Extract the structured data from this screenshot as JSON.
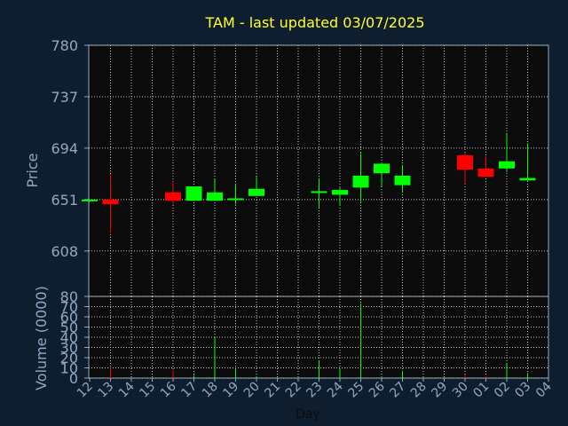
{
  "chart_data": {
    "type": "candlestick",
    "title": "TAM - last updated 03/07/2025",
    "xlabel": "Day",
    "price_panel": {
      "ylabel": "Price",
      "ylim": [
        570,
        780
      ],
      "yticks": [
        608,
        651,
        694,
        737,
        780
      ],
      "grid": true
    },
    "volume_panel": {
      "ylabel": "Volume (0000)",
      "ylim": [
        0,
        80
      ],
      "yticks": [
        0,
        10,
        20,
        30,
        40,
        50,
        60,
        70,
        80
      ],
      "grid": true
    },
    "x_tick_labels": [
      "12",
      "13",
      "14",
      "15",
      "16",
      "17",
      "18",
      "19",
      "20",
      "21",
      "22",
      "23",
      "24",
      "25",
      "26",
      "27",
      "28",
      "29",
      "30",
      "01",
      "02",
      "03",
      "04"
    ],
    "colors": {
      "background": "#0f1e2e",
      "plot_background": "#0b0b0b",
      "up": "#00ff00",
      "down": "#ff0000",
      "title": "#ffff33",
      "axis_text": "#8fa9c4",
      "grid": "#c8c8c8",
      "frame": "#8fa9c4"
    },
    "candles": [
      {
        "day": "12",
        "open": 650,
        "high": 651,
        "low": 649,
        "close": 651,
        "volume": 0.5
      },
      {
        "day": "13",
        "open": 651,
        "high": 672,
        "low": 623,
        "close": 647,
        "volume": 10
      },
      {
        "day": "16",
        "open": 657,
        "high": 667,
        "low": 647,
        "close": 650,
        "volume": 8
      },
      {
        "day": "17",
        "open": 650,
        "high": 662,
        "low": 650,
        "close": 662,
        "volume": 3
      },
      {
        "day": "18",
        "open": 650,
        "high": 668,
        "low": 650,
        "close": 657,
        "volume": 41
      },
      {
        "day": "19",
        "open": 651,
        "high": 664,
        "low": 647,
        "close": 652,
        "volume": 10
      },
      {
        "day": "20",
        "open": 654,
        "high": 670,
        "low": 654,
        "close": 660,
        "volume": 2
      },
      {
        "day": "23",
        "open": 657,
        "high": 669,
        "low": 644,
        "close": 658,
        "volume": 17
      },
      {
        "day": "24",
        "open": 655,
        "high": 662,
        "low": 646,
        "close": 659,
        "volume": 10
      },
      {
        "day": "25",
        "open": 661,
        "high": 690,
        "low": 649,
        "close": 671,
        "volume": 73
      },
      {
        "day": "26",
        "open": 673,
        "high": 682,
        "low": 662,
        "close": 681,
        "volume": 2
      },
      {
        "day": "27",
        "open": 663,
        "high": 680,
        "low": 657,
        "close": 671,
        "volume": 7
      },
      {
        "day": "30",
        "open": 688,
        "high": 690,
        "low": 664,
        "close": 676,
        "volume": 3
      },
      {
        "day": "01",
        "open": 677,
        "high": 687,
        "low": 670,
        "close": 670,
        "volume": 2
      },
      {
        "day": "02",
        "open": 677,
        "high": 706,
        "low": 674,
        "close": 683,
        "volume": 14
      },
      {
        "day": "03",
        "open": 667,
        "high": 698,
        "low": 667,
        "close": 669,
        "volume": 5
      }
    ]
  }
}
